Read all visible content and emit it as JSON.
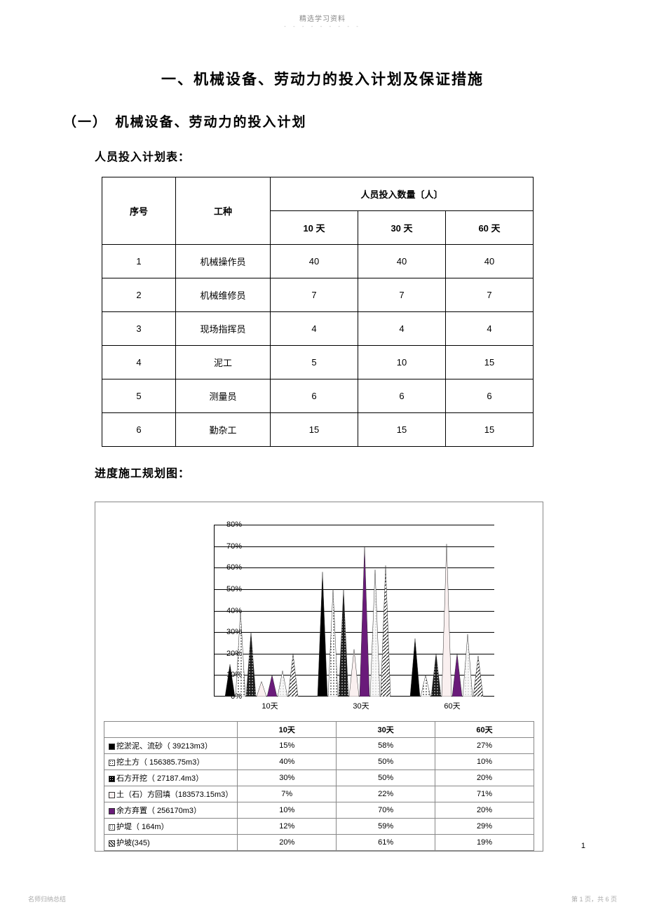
{
  "header": {
    "note": "精选学习资料",
    "dots": "- - - - - - - - -"
  },
  "title": "一、机械设备、劳动力的投入计划及保证措施",
  "section": "（一）　机械设备、劳动力的投入计划",
  "sub1": "人员投入计划表：",
  "sub2": "进度施工规划图：",
  "personnel_table": {
    "h1": "序号",
    "h2": "工种",
    "h3": "人员投入数量〔人〕",
    "c1": "10 天",
    "c2": "30 天",
    "c3": "60 天",
    "rows": [
      {
        "n": "1",
        "role": "机械操作员",
        "d10": "40",
        "d30": "40",
        "d60": "40"
      },
      {
        "n": "2",
        "role": "机械维修员",
        "d10": "7",
        "d30": "7",
        "d60": "7"
      },
      {
        "n": "3",
        "role": "现场指挥员",
        "d10": "4",
        "d30": "4",
        "d60": "4"
      },
      {
        "n": "4",
        "role": "泥工",
        "d10": "5",
        "d30": "10",
        "d60": "15"
      },
      {
        "n": "5",
        "role": "测量员",
        "d10": "6",
        "d30": "6",
        "d60": "6"
      },
      {
        "n": "6",
        "role": "勤杂工",
        "d10": "15",
        "d30": "15",
        "d60": "15"
      }
    ]
  },
  "chart": {
    "type": "cone-grouped",
    "ylabel_fontsize": 11,
    "ylim_max": 80,
    "ytick_step": 10,
    "categories": [
      "10天",
      "30天",
      "60天"
    ],
    "series": [
      {
        "name": "挖淤泥、流砂（ 39213m3）",
        "marker": "■",
        "swatch": "#000000",
        "pattern": "solid",
        "values": [
          15,
          58,
          27
        ]
      },
      {
        "name": "挖土方（ 156385.75m3）",
        "marker": "□",
        "swatch": "#ffffff",
        "pattern": "dots",
        "values": [
          40,
          50,
          10
        ]
      },
      {
        "name": "石方开挖（ 27187.4m3）",
        "marker": "■",
        "swatch": "#000000",
        "pattern": "dots-dark",
        "values": [
          30,
          50,
          20
        ]
      },
      {
        "name": "土（石）方回填（183573.15m3）",
        "marker": "□",
        "swatch": "#faf0f0",
        "pattern": "light",
        "values": [
          7,
          22,
          71
        ]
      },
      {
        "name": "余方弃置（ 256170m3）",
        "marker": "■",
        "swatch": "#6a1b7a",
        "pattern": "solid-purple",
        "values": [
          10,
          70,
          20
        ]
      },
      {
        "name": "护堤（ 164m）",
        "marker": "□",
        "swatch": "#f5f5f5",
        "pattern": "dots-light",
        "values": [
          12,
          59,
          29
        ]
      },
      {
        "name": "护坡(345)",
        "marker": "▨",
        "swatch": "#e0e0e0",
        "pattern": "hatch",
        "values": [
          20,
          61,
          19
        ]
      }
    ],
    "chart_bg": "#ffffff",
    "grid_color": "#000000",
    "cone_base_width": 14,
    "group_width": 120
  },
  "footer": {
    "page_num": "1",
    "left": "名师归纳总结",
    "right": "第 1 页，共 6 页"
  }
}
